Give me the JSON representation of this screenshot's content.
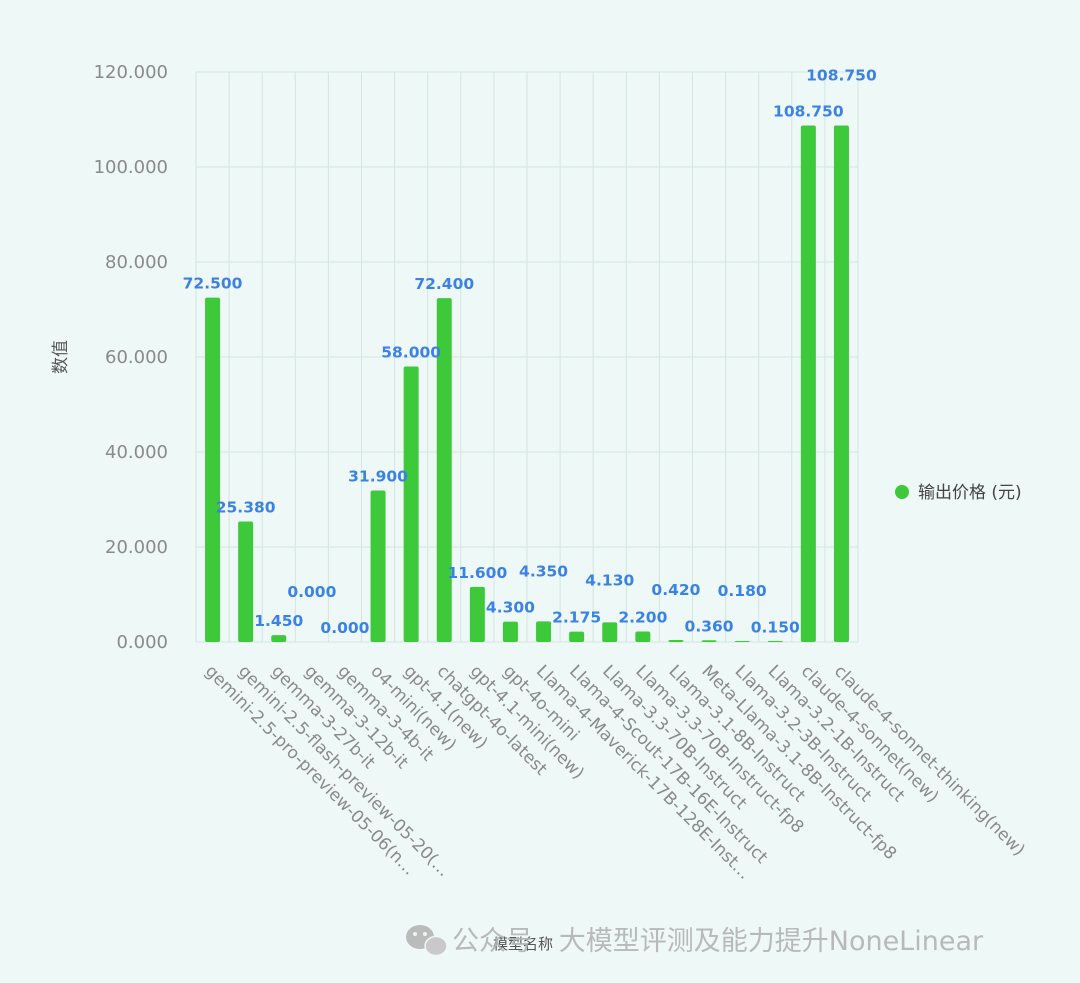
{
  "chart_data": {
    "type": "bar",
    "categories": [
      "gemini-2.5-pro-preview-05-06(n…",
      "gemini-2.5-flash-preview-05-20(…",
      "gemma-3-27b-it",
      "gemma-3-12b-it",
      "gemma-3-4b-it",
      "o4-mini(new)",
      "gpt-4.1(new)",
      "chatgpt-4o-latest",
      "gpt-4.1-mini(new)",
      "gpt-4o-mini",
      "Llama-4-Maverick-17B-128E-Inst…",
      "Llama-4-Scout-17B-16E-Instruct",
      "Llama-3.3-70B-Instruct",
      "Llama-3.3-70B-Instruct-fp8",
      "Llama-3.1-8B-Instruct",
      "Meta-Llama-3.1-8B-Instruct-fp8",
      "Llama-3.2-3B-Instruct",
      "Llama-3.2-1B-Instruct",
      "claude-4-sonnet(new)",
      "claude-4-sonnet-thinking(new)"
    ],
    "series": [
      {
        "name": "输出价格 (元)",
        "values": [
          72.5,
          25.38,
          1.45,
          0.0,
          0.0,
          31.9,
          58.0,
          72.4,
          11.6,
          4.3,
          4.35,
          2.175,
          4.13,
          2.2,
          0.42,
          0.36,
          0.18,
          0.15,
          108.75,
          108.75
        ],
        "labels": [
          "72.500",
          "25.380",
          "1.450",
          "0.000",
          "0.000",
          "31.900",
          "58.000",
          "72.400",
          "11.600",
          "4.300",
          "4.350",
          "2.175",
          "4.130",
          "2.200",
          "0.420",
          "0.360",
          "0.180",
          "0.150",
          "108.750",
          "108.750"
        ]
      }
    ],
    "xlabel": "模型名称",
    "ylabel": "数值",
    "ylim": [
      0,
      120
    ],
    "yticks": [
      0,
      20,
      40,
      60,
      80,
      100,
      120
    ],
    "ytick_labels": [
      "0.000",
      "20.000",
      "40.000",
      "60.000",
      "80.000",
      "100.000",
      "120.000"
    ],
    "legend_position": "right",
    "grid": true,
    "colors": {
      "bar": "#3ec93a",
      "data_label": "#3b82e6",
      "grid": "#d3e6e2",
      "background": "#eef8f6"
    }
  },
  "watermark": {
    "icon": "wechat-icon",
    "text": "公众号 · 大模型评测及能力提升NoneLinear"
  }
}
